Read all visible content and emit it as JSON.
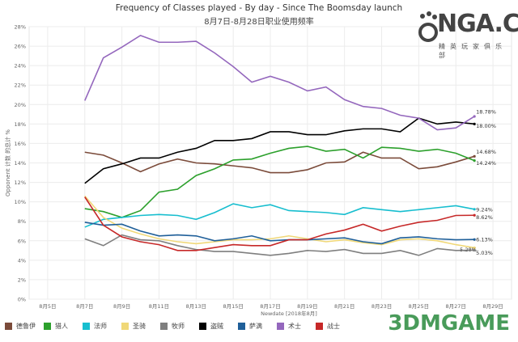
{
  "chart_data": {
    "type": "line",
    "title": "Frequency of Classes played - By day - Since The Boomsday launch",
    "subtitle": "8月7日-8月28日职业使用频率",
    "xlabel": "Newdate [2018年8月]",
    "ylabel": "Opponent 计数 的总计 %",
    "ylim": [
      0,
      28
    ],
    "yticks": [
      "0%",
      "2%",
      "4%",
      "6%",
      "8%",
      "10%",
      "12%",
      "14%",
      "16%",
      "18%",
      "20%",
      "22%",
      "24%",
      "26%",
      "28%"
    ],
    "xticks": [
      "8月5日",
      "8月7日",
      "8月9日",
      "8月11日",
      "8月13日",
      "8月15日",
      "8月17日",
      "8月19日",
      "8月21日",
      "8月23日",
      "8月25日",
      "8月27日",
      "8月29日"
    ],
    "xlim_days": [
      4,
      30
    ],
    "x": [
      7,
      8,
      9,
      10,
      11,
      12,
      13,
      14,
      15,
      16,
      17,
      18,
      19,
      20,
      21,
      22,
      23,
      24,
      25,
      26,
      27,
      28
    ],
    "grid": true,
    "legend_position": "bottom",
    "series": [
      {
        "name": "德鲁伊",
        "color": "#7b4b3a",
        "values": [
          15.1,
          14.8,
          14.0,
          13.1,
          13.9,
          14.4,
          14.0,
          13.9,
          13.7,
          13.5,
          13.0,
          13.0,
          13.3,
          14.0,
          14.1,
          15.1,
          14.5,
          14.5,
          13.4,
          13.6,
          14.1,
          14.68
        ],
        "end_label": "14.68%"
      },
      {
        "name": "猎人",
        "color": "#2ca02c",
        "values": [
          9.3,
          9.0,
          8.4,
          9.1,
          11.0,
          11.3,
          12.7,
          13.4,
          14.3,
          14.4,
          15.0,
          15.5,
          15.7,
          15.2,
          15.4,
          14.5,
          15.6,
          15.5,
          15.2,
          15.4,
          15.0,
          14.24
        ],
        "end_label": "14.24%"
      },
      {
        "name": "法师",
        "color": "#17becf",
        "values": [
          7.4,
          8.2,
          8.4,
          8.6,
          8.7,
          8.6,
          8.2,
          8.9,
          9.8,
          9.4,
          9.7,
          9.1,
          9.0,
          8.9,
          8.7,
          9.4,
          9.2,
          9.0,
          9.2,
          9.4,
          9.6,
          9.24
        ],
        "end_label": "9.24%"
      },
      {
        "name": "圣骑",
        "color": "#f0d878",
        "values": [
          10.6,
          8.4,
          7.3,
          6.7,
          6.2,
          5.9,
          5.7,
          5.9,
          6.1,
          6.1,
          6.2,
          6.5,
          6.2,
          5.9,
          6.1,
          5.8,
          5.6,
          6.1,
          6.2,
          6.0,
          5.6,
          5.28
        ],
        "end_label": "5.28%"
      },
      {
        "name": "牧师",
        "color": "#7f7f7f",
        "values": [
          6.2,
          5.5,
          6.6,
          6.1,
          6.0,
          5.5,
          5.1,
          4.9,
          4.9,
          4.7,
          4.5,
          4.7,
          5.0,
          4.9,
          5.1,
          4.7,
          4.7,
          5.0,
          4.5,
          5.2,
          5.0,
          5.03
        ],
        "end_label": "5.03%"
      },
      {
        "name": "盗贼",
        "color": "#000000",
        "values": [
          11.9,
          13.4,
          13.9,
          14.5,
          14.5,
          15.1,
          15.5,
          16.3,
          16.3,
          16.5,
          17.2,
          17.2,
          16.9,
          16.9,
          17.3,
          17.5,
          17.5,
          17.2,
          18.6,
          18.0,
          18.2,
          18.0
        ],
        "end_label": "18.00%"
      },
      {
        "name": "萨满",
        "color": "#1f5f99",
        "values": [
          7.9,
          7.6,
          7.7,
          7.0,
          6.5,
          6.6,
          6.5,
          6.0,
          6.2,
          6.5,
          6.0,
          6.1,
          6.1,
          6.2,
          6.3,
          5.9,
          5.7,
          6.3,
          6.4,
          6.2,
          6.1,
          6.13
        ],
        "end_label": "6.13%"
      },
      {
        "name": "术士",
        "color": "#9467bd",
        "values": [
          20.4,
          24.8,
          25.9,
          27.1,
          26.4,
          26.4,
          26.5,
          25.3,
          23.9,
          22.3,
          22.9,
          22.3,
          21.4,
          21.8,
          20.5,
          19.8,
          19.6,
          18.9,
          18.6,
          17.4,
          17.6,
          18.78
        ],
        "end_label": "18.78%"
      },
      {
        "name": "战士",
        "color": "#c62828",
        "values": [
          10.5,
          7.6,
          6.4,
          5.9,
          5.6,
          5.0,
          5.0,
          5.3,
          5.6,
          5.5,
          5.5,
          6.1,
          6.1,
          6.7,
          7.1,
          7.7,
          7.0,
          7.5,
          7.9,
          8.1,
          8.6,
          8.62
        ],
        "end_label": "8.62%"
      }
    ]
  },
  "watermarks": {
    "top_logo": "NGA.CN",
    "top_logo_sub": "精英玩家俱乐部",
    "bottom_logo": "3DMGAME"
  }
}
